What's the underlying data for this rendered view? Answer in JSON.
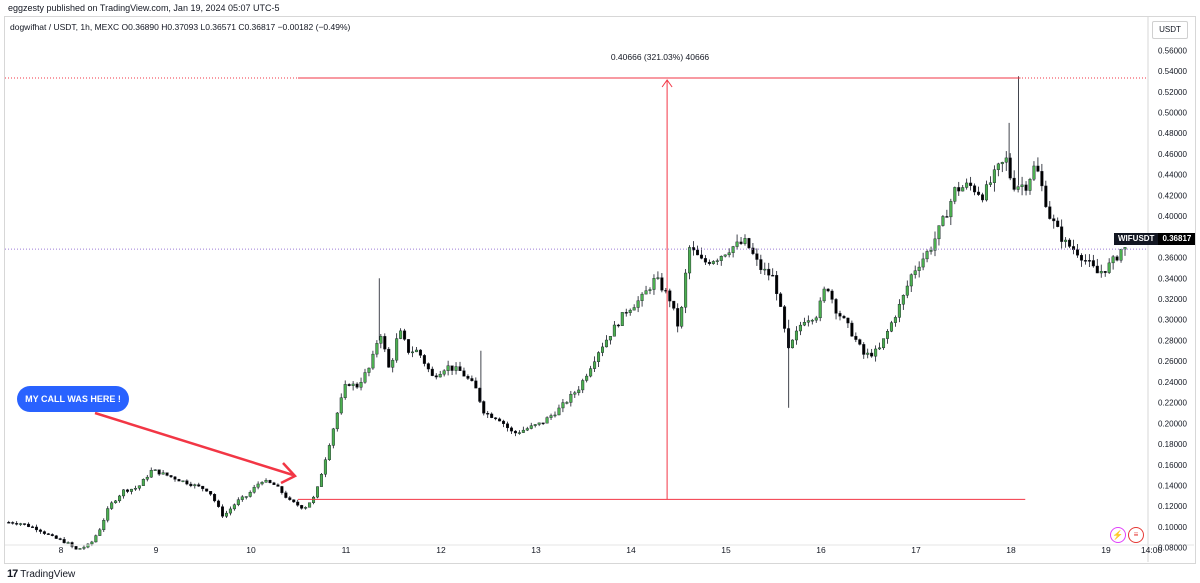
{
  "header": {
    "publisher": "eggzesty published on TradingView.com, Jan 19, 2024 05:07 UTC-5"
  },
  "legend": {
    "symbol": "dogwifhat / USDT, 1h, MEXC",
    "open": "O0.36890",
    "high": "H0.37093",
    "low": "L0.36571",
    "close": "C0.36817",
    "change": "−0.00182 (−0.49%)"
  },
  "currency_button": "USDT",
  "measure_label": "0.40666 (321.03%) 40666",
  "callout_text": "MY CALL WAS HERE !",
  "price_tag": {
    "symbol": "WIFUSDT",
    "value": "0.36817"
  },
  "footer": {
    "brand": "TradingView"
  },
  "colors": {
    "up": "#4caf50",
    "down": "#000000",
    "annotation": "#f23645",
    "current_price_line": "#9c7bd6",
    "callout": "#2962ff"
  },
  "chart_data": {
    "type": "candlestick",
    "title": "",
    "x_ticks": [
      "8",
      "9",
      "10",
      "11",
      "12",
      "13",
      "14",
      "15",
      "16",
      "17",
      "18",
      "19",
      "14:00"
    ],
    "y_ticks": [
      "0.56000",
      "0.54000",
      "0.52000",
      "0.50000",
      "0.48000",
      "0.46000",
      "0.44000",
      "0.42000",
      "0.40000",
      "0.38000",
      "0.36000",
      "0.34000",
      "0.32000",
      "0.30000",
      "0.28000",
      "0.26000",
      "0.24000",
      "0.22000",
      "0.20000",
      "0.18000",
      "0.16000",
      "0.14000",
      "0.12000",
      "0.10000",
      "0.08000"
    ],
    "ylim": [
      0.07,
      0.57
    ],
    "grid": true,
    "current_price": 0.36817,
    "measure": {
      "from_price": 0.1266,
      "to_price": 0.5333,
      "diff": 0.40666,
      "percent": 321.03,
      "from_day": 10.6,
      "to_day": 18.1,
      "arrow_day": 14.38
    },
    "trend": [
      [
        7.45,
        0.1045
      ],
      [
        7.6,
        0.104
      ],
      [
        7.8,
        0.098
      ],
      [
        7.95,
        0.09
      ],
      [
        8.1,
        0.085
      ],
      [
        8.2,
        0.078
      ],
      [
        8.35,
        0.083
      ],
      [
        8.45,
        0.098
      ],
      [
        8.55,
        0.12
      ],
      [
        8.7,
        0.135
      ],
      [
        8.85,
        0.138
      ],
      [
        9.0,
        0.155
      ],
      [
        9.15,
        0.15
      ],
      [
        9.3,
        0.145
      ],
      [
        9.45,
        0.14
      ],
      [
        9.6,
        0.135
      ],
      [
        9.75,
        0.11
      ],
      [
        9.9,
        0.125
      ],
      [
        10.0,
        0.13
      ],
      [
        10.15,
        0.145
      ],
      [
        10.3,
        0.14
      ],
      [
        10.45,
        0.125
      ],
      [
        10.6,
        0.118
      ],
      [
        10.72,
        0.13
      ],
      [
        10.85,
        0.175
      ],
      [
        10.95,
        0.21
      ],
      [
        11.05,
        0.24
      ],
      [
        11.15,
        0.235
      ],
      [
        11.3,
        0.255
      ],
      [
        11.4,
        0.29
      ],
      [
        11.5,
        0.25
      ],
      [
        11.6,
        0.29
      ],
      [
        11.7,
        0.27
      ],
      [
        11.8,
        0.27
      ],
      [
        11.95,
        0.245
      ],
      [
        12.1,
        0.255
      ],
      [
        12.25,
        0.25
      ],
      [
        12.4,
        0.235
      ],
      [
        12.5,
        0.21
      ],
      [
        12.65,
        0.205
      ],
      [
        12.8,
        0.19
      ],
      [
        12.95,
        0.195
      ],
      [
        13.1,
        0.2
      ],
      [
        13.3,
        0.215
      ],
      [
        13.5,
        0.235
      ],
      [
        13.7,
        0.27
      ],
      [
        13.85,
        0.29
      ],
      [
        14.0,
        0.31
      ],
      [
        14.15,
        0.32
      ],
      [
        14.3,
        0.34
      ],
      [
        14.45,
        0.32
      ],
      [
        14.55,
        0.29
      ],
      [
        14.65,
        0.37
      ],
      [
        14.8,
        0.355
      ],
      [
        14.95,
        0.36
      ],
      [
        15.1,
        0.37
      ],
      [
        15.25,
        0.375
      ],
      [
        15.4,
        0.35
      ],
      [
        15.55,
        0.34
      ],
      [
        15.7,
        0.27
      ],
      [
        15.85,
        0.3
      ],
      [
        16.0,
        0.305
      ],
      [
        16.1,
        0.335
      ],
      [
        16.2,
        0.31
      ],
      [
        16.35,
        0.29
      ],
      [
        16.5,
        0.265
      ],
      [
        16.65,
        0.27
      ],
      [
        16.8,
        0.3
      ],
      [
        16.9,
        0.32
      ],
      [
        17.0,
        0.345
      ],
      [
        17.2,
        0.37
      ],
      [
        17.35,
        0.4
      ],
      [
        17.45,
        0.425
      ],
      [
        17.6,
        0.43
      ],
      [
        17.75,
        0.42
      ],
      [
        17.9,
        0.445
      ],
      [
        18.0,
        0.455
      ],
      [
        18.05,
        0.43
      ],
      [
        18.2,
        0.43
      ],
      [
        18.3,
        0.45
      ],
      [
        18.45,
        0.4
      ],
      [
        18.6,
        0.375
      ],
      [
        18.75,
        0.365
      ],
      [
        18.85,
        0.355
      ],
      [
        18.95,
        0.345
      ],
      [
        19.05,
        0.35
      ],
      [
        19.15,
        0.36
      ],
      [
        19.2,
        0.368
      ]
    ]
  }
}
